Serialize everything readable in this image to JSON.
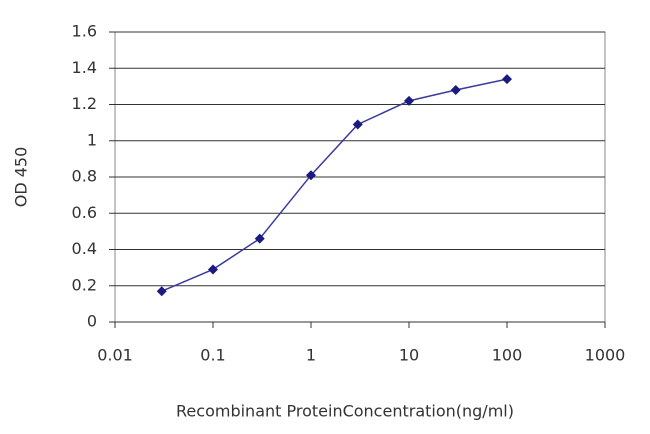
{
  "chart_data": {
    "type": "line",
    "x_label": "Recombinant ProteinConcentration(ng/ml)",
    "y_label": "OD 450",
    "x": [
      0.03,
      0.1,
      0.3,
      1,
      3,
      10,
      30,
      100
    ],
    "series": [
      {
        "color": "#3b3b9c",
        "values": [
          0.17,
          0.29,
          0.46,
          0.81,
          1.09,
          1.22,
          1.28,
          1.34
        ]
      }
    ],
    "xscale": "log",
    "xlim": [
      0.01,
      1000
    ],
    "xticks": [
      0.01,
      0.1,
      1,
      10,
      100,
      1000
    ],
    "ylim": [
      0,
      1.6
    ],
    "yticks": [
      0,
      0.2,
      0.4,
      0.6,
      0.8,
      1,
      1.2,
      1.4,
      1.6
    ],
    "grid": true
  }
}
